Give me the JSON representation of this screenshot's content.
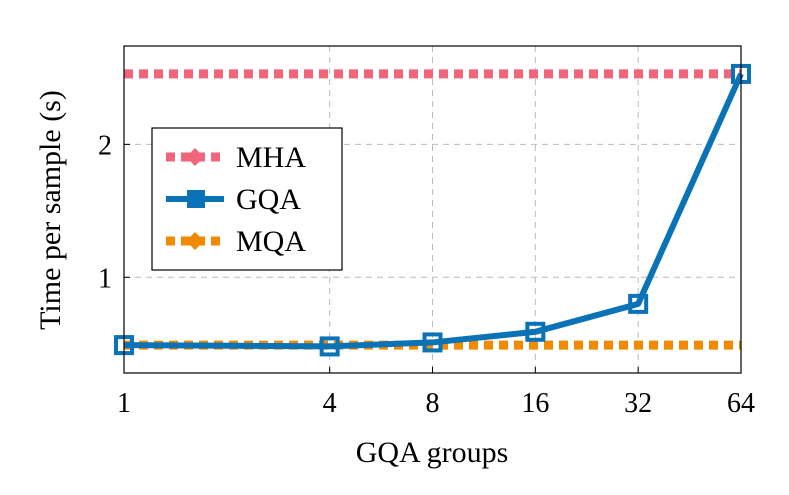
{
  "chart_data": {
    "type": "line",
    "xlabel": "GQA groups",
    "ylabel": "Time per sample (s)",
    "x_scale": "log2",
    "x": [
      1,
      4,
      8,
      16,
      32,
      64
    ],
    "x_tick_labels": [
      "1",
      "4",
      "8",
      "16",
      "32",
      "64"
    ],
    "y_ticks": [
      1,
      2
    ],
    "y_tick_labels": [
      "1",
      "2"
    ],
    "xlim": [
      1,
      64
    ],
    "ylim": [
      0.28,
      2.74
    ],
    "grid": true,
    "legend_position": "center-left",
    "series": [
      {
        "name": "MHA",
        "color": "#f0657a",
        "style": "dotted",
        "values": [
          2.53,
          2.53,
          2.53,
          2.53,
          2.53,
          2.53
        ]
      },
      {
        "name": "GQA",
        "color": "#0a72b6",
        "style": "solid",
        "marker": "square",
        "values": [
          0.49,
          0.48,
          0.51,
          0.59,
          0.8,
          2.53
        ]
      },
      {
        "name": "MQA",
        "color": "#f08a00",
        "style": "dotted",
        "values": [
          0.49,
          0.49,
          0.49,
          0.49,
          0.49,
          0.49
        ]
      }
    ]
  }
}
